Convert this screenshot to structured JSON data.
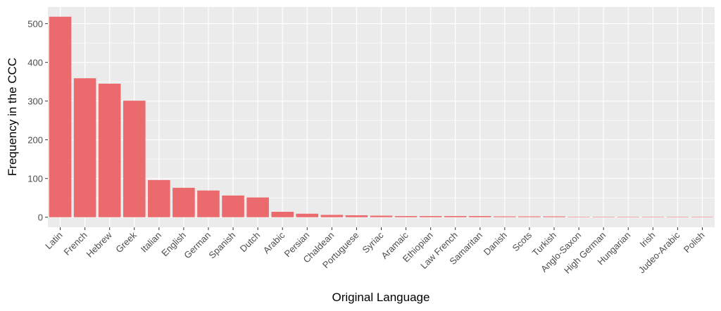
{
  "chart_data": {
    "type": "bar",
    "x_label": "Original Language",
    "y_label": "Frequency in the CCC",
    "categories": [
      "Latin",
      "French",
      "Hebrew",
      "Greek",
      "Italian",
      "English",
      "German",
      "Spanish",
      "Dutch",
      "Arabic",
      "Persian",
      "Chaldean",
      "Portuguese",
      "Syriac",
      "Aramaic",
      "Ethiopian",
      "Law French",
      "Samaritan",
      "Danish",
      "Scots",
      "Turkish",
      "Anglo-Saxon",
      "High German",
      "Hungarian",
      "Irish",
      "Judeo-Arabic",
      "Polish"
    ],
    "values": [
      518,
      359,
      345,
      301,
      96,
      76,
      69,
      56,
      51,
      14,
      9,
      6,
      5,
      4,
      3,
      3,
      3,
      3,
      2,
      2,
      2,
      1,
      1,
      1,
      1,
      1,
      1
    ],
    "color": "#eb6a6e",
    "ylim": [
      -26,
      543
    ],
    "yticks": [
      0,
      100,
      200,
      300,
      400,
      500
    ],
    "grid": true
  }
}
